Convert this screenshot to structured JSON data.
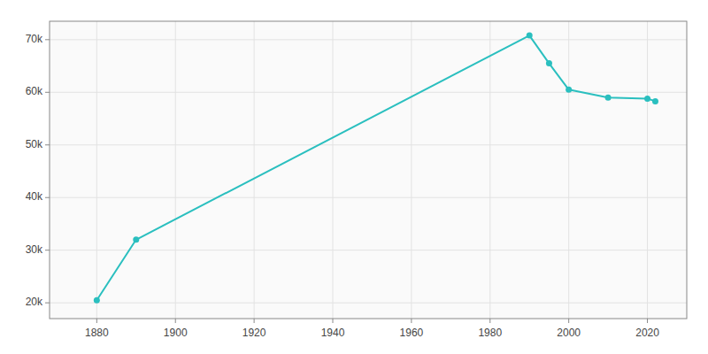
{
  "chart_data": {
    "type": "line",
    "x": [
      1880,
      1890,
      1990,
      1995,
      2000,
      2010,
      2020,
      2022
    ],
    "values": [
      20500,
      32000,
      70800,
      65500,
      60500,
      59000,
      58800,
      58300
    ],
    "color": "#2abfbf",
    "marker": "circle",
    "xlim": [
      1868,
      2030
    ],
    "ylim": [
      17000,
      73500
    ],
    "xticks": [
      1880,
      1900,
      1920,
      1940,
      1960,
      1980,
      2000,
      2020
    ],
    "yticks": [
      {
        "value": 20000,
        "label": "20k"
      },
      {
        "value": 30000,
        "label": "30k"
      },
      {
        "value": 40000,
        "label": "40k"
      },
      {
        "value": 50000,
        "label": "50k"
      },
      {
        "value": 60000,
        "label": "60k"
      },
      {
        "value": 70000,
        "label": "70k"
      }
    ],
    "grid": true
  }
}
